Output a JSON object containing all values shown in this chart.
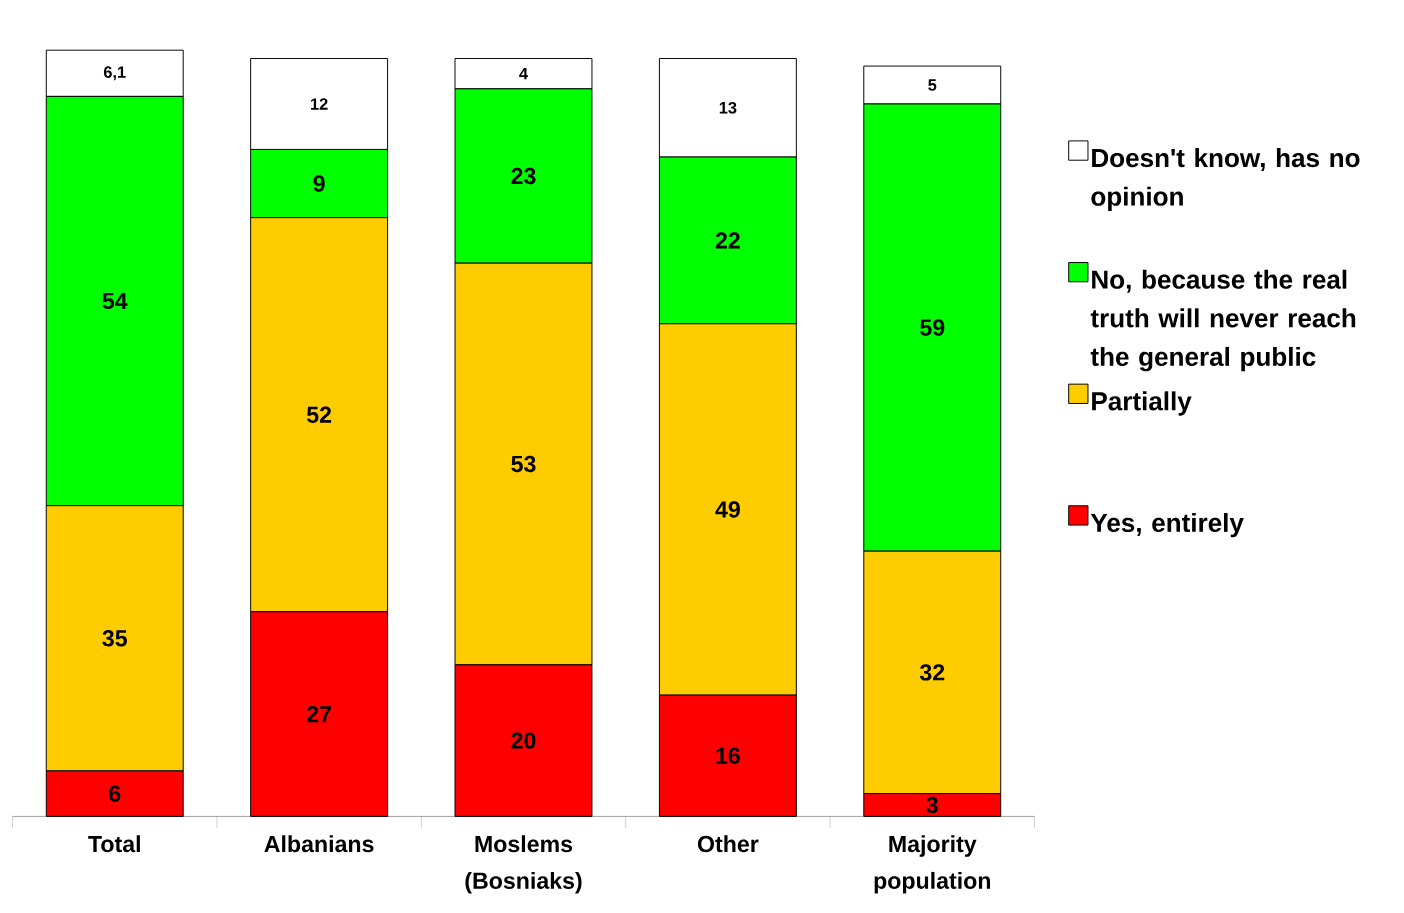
{
  "chart_data": {
    "type": "bar",
    "stacked": true,
    "data_labels": true,
    "legend": "right",
    "categories": [
      "Total",
      "Albanians",
      "Moslems (Bosniaks)",
      "Other",
      "Majority population"
    ],
    "series": [
      {
        "name": "Yes, entirely",
        "color": "#ff0000",
        "values": [
          6,
          27,
          20,
          16,
          3
        ]
      },
      {
        "name": "Partially",
        "color": "#ffcc00",
        "values": [
          35,
          52,
          53,
          49,
          32
        ]
      },
      {
        "name": "No, because the real truth will never reach the general public",
        "color": "#00ff00",
        "values": [
          54,
          9,
          23,
          22,
          59
        ]
      },
      {
        "name": "Doesn't know, has no opinion",
        "color": "#ffffff",
        "values": [
          6.1,
          12,
          4,
          13,
          5
        ],
        "value_labels": [
          "6,1",
          "12",
          "4",
          "13",
          "5"
        ]
      }
    ]
  }
}
